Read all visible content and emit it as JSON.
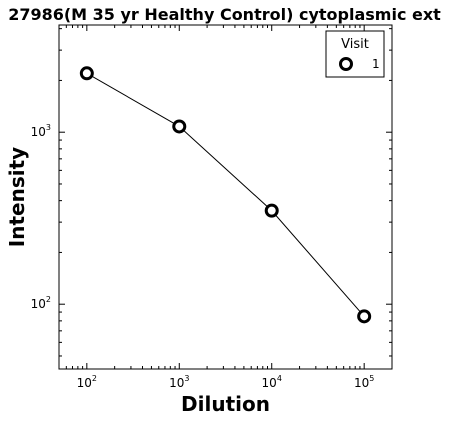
{
  "chart_data": {
    "type": "line",
    "title": "27986(M 35 yr Healthy Control) cytoplasmic ext",
    "xlabel": "Dilution",
    "ylabel": "Intensity",
    "xscale": "log",
    "yscale": "log",
    "xlim": [
      50,
      200000
    ],
    "ylim": [
      42,
      4200
    ],
    "x_ticks": [
      {
        "value": 100,
        "base": "10",
        "exp": "2"
      },
      {
        "value": 1000,
        "base": "10",
        "exp": "3"
      },
      {
        "value": 10000,
        "base": "10",
        "exp": "4"
      },
      {
        "value": 100000,
        "base": "10",
        "exp": "5"
      }
    ],
    "y_ticks": [
      {
        "value": 100,
        "base": "10",
        "exp": "2"
      },
      {
        "value": 1000,
        "base": "10",
        "exp": "3"
      }
    ],
    "grid": false,
    "legend": {
      "title": "Visit",
      "placement": "top-right"
    },
    "series": [
      {
        "name": "1",
        "x": [
          100,
          1000,
          10000,
          100000
        ],
        "y": [
          2200,
          1080,
          350,
          85
        ],
        "marker": "open-circle",
        "line_color": "#000000",
        "marker_color": "#000000"
      }
    ]
  }
}
